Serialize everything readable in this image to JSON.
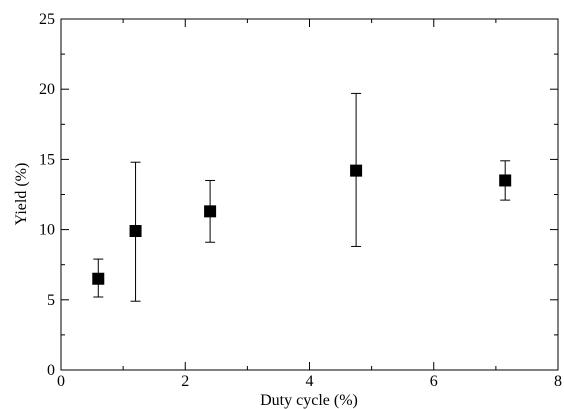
{
  "chart_data": {
    "type": "scatter",
    "title": "",
    "xlabel": "Duty cycle (%)",
    "ylabel": "Yield (%)",
    "xlim": [
      0,
      8
    ],
    "ylim": [
      0,
      25
    ],
    "xticks": [
      0,
      2,
      4,
      6,
      8
    ],
    "yticks": [
      0,
      5,
      10,
      15,
      20,
      25
    ],
    "xtick_labels": [
      "0",
      "2",
      "4",
      "6",
      "8"
    ],
    "ytick_labels": [
      "0",
      "5",
      "10",
      "15",
      "20",
      "25"
    ],
    "grid": false,
    "legend": "none",
    "marker": "square",
    "marker_color": "#000000",
    "points": [
      {
        "x": 0.6,
        "y": 6.5,
        "y_low": 5.2,
        "y_high": 7.9
      },
      {
        "x": 1.2,
        "y": 9.9,
        "y_low": 4.9,
        "y_high": 14.8
      },
      {
        "x": 2.4,
        "y": 11.3,
        "y_low": 9.1,
        "y_high": 13.5
      },
      {
        "x": 4.75,
        "y": 14.2,
        "y_low": 8.8,
        "y_high": 19.7
      },
      {
        "x": 7.15,
        "y": 13.5,
        "y_low": 12.1,
        "y_high": 14.9
      }
    ]
  }
}
